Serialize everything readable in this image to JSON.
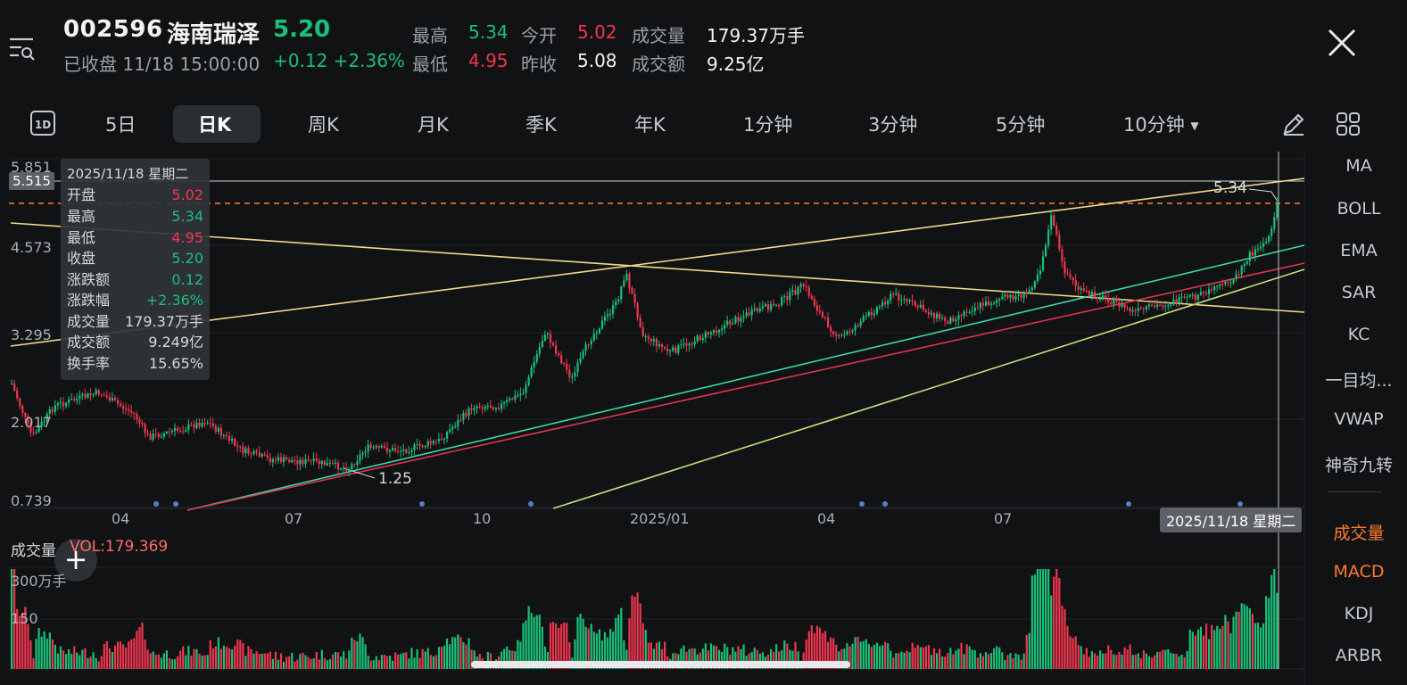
{
  "header": {
    "code": "002596",
    "name": "海南瑞泽",
    "price": "5.20",
    "status": "已收盘 11/18 15:00:00",
    "change": "+0.12 +2.36%",
    "quote": {
      "high_label": "最高",
      "high": "5.34",
      "open_label": "今开",
      "open": "5.02",
      "volume_label": "成交量",
      "volume": "179.37万手",
      "low_label": "最低",
      "low": "4.95",
      "prev_close_label": "昨收",
      "prev_close": "5.08",
      "amount_label": "成交额",
      "amount": "9.25亿"
    }
  },
  "icons": {
    "menu": "menu-search-icon",
    "close": "close-icon",
    "draw": "pencil-icon",
    "layout": "grid-icon"
  },
  "tabs": {
    "oneday": "1D",
    "items": [
      "5日",
      "日K",
      "周K",
      "月K",
      "季K",
      "年K",
      "1分钟",
      "3分钟",
      "5分钟",
      "10分钟"
    ],
    "active": "日K"
  },
  "indicators_main": [
    "MA",
    "BOLL",
    "EMA",
    "SAR",
    "KC",
    "一目均...",
    "VWAP",
    "神奇九转"
  ],
  "indicators_sub": [
    "成交量",
    "MACD",
    "KDJ",
    "ARBR"
  ],
  "tooltip": {
    "date": "2025/11/18 星期二",
    "rows": [
      {
        "label": "开盘",
        "value": "5.02"
      },
      {
        "label": "最高",
        "value": "5.34"
      },
      {
        "label": "最低",
        "value": "4.95"
      },
      {
        "label": "收盘",
        "value": "5.20"
      },
      {
        "label": "涨跌额",
        "value": "0.12"
      },
      {
        "label": "涨跌幅",
        "value": "+2.36%"
      },
      {
        "label": "成交量",
        "value": "179.37万手"
      },
      {
        "label": "成交额",
        "value": "9.249亿"
      },
      {
        "label": "换手率",
        "value": "15.65%"
      }
    ]
  },
  "chart_data": {
    "type": "candlestick",
    "y_ticks": [
      "5.851",
      "4.573",
      "3.295",
      "2.017",
      "0.739"
    ],
    "x_ticks": [
      "04",
      "07",
      "10",
      "2025/01",
      "04",
      "07"
    ],
    "crosshair_price": "5.515",
    "crosshair_date": "2025/11/18 星期二",
    "max_label": "5.34",
    "min_label": "1.25",
    "volume": {
      "title": "成交量",
      "value": "VOL:179.369",
      "y_ticks": [
        "300万手",
        "150"
      ]
    },
    "colors": {
      "up": "#19c07a",
      "down": "#f0364e",
      "trend_yellow": "#f3d98a",
      "trend_cyan": "#3ad9a8",
      "trend_red": "#e0344d",
      "trend_lime": "#c8e07a",
      "dashed": "#ff7a2e"
    }
  }
}
